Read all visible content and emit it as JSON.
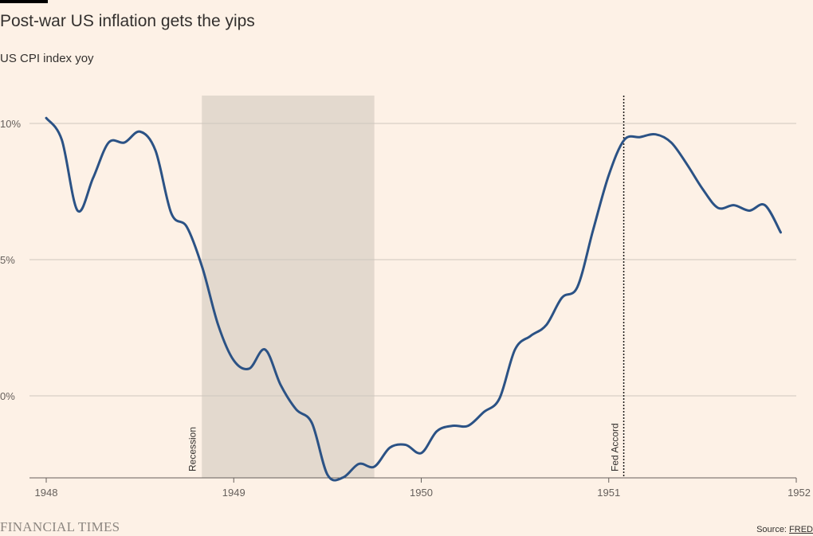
{
  "chart_data": {
    "type": "line",
    "title": "Post-war US inflation gets the yips",
    "subtitle": "US CPI index yoy",
    "xlabel": "",
    "ylabel": "",
    "xlim": [
      1948,
      1952
    ],
    "ylim": [
      -3,
      11
    ],
    "x_ticks": [
      {
        "value": 1948,
        "label": "1948"
      },
      {
        "value": 1949,
        "label": "1949"
      },
      {
        "value": 1950,
        "label": "1950"
      },
      {
        "value": 1951,
        "label": "1951"
      },
      {
        "value": 1952,
        "label": "1952"
      }
    ],
    "y_ticks": [
      {
        "value": 10,
        "label": "10%"
      },
      {
        "value": 5,
        "label": "5%"
      },
      {
        "value": 0,
        "label": "0%"
      }
    ],
    "grid": true,
    "series": [
      {
        "color": "#2b5285",
        "points": [
          [
            1948.0,
            10.2
          ],
          [
            1948.083,
            9.4
          ],
          [
            1948.167,
            6.8
          ],
          [
            1948.25,
            8.0
          ],
          [
            1948.333,
            9.3
          ],
          [
            1948.417,
            9.3
          ],
          [
            1948.5,
            9.7
          ],
          [
            1948.583,
            9.0
          ],
          [
            1948.667,
            6.7
          ],
          [
            1948.75,
            6.2
          ],
          [
            1948.833,
            4.7
          ],
          [
            1948.917,
            2.6
          ],
          [
            1949.0,
            1.3
          ],
          [
            1949.083,
            1.0
          ],
          [
            1949.167,
            1.7
          ],
          [
            1949.25,
            0.4
          ],
          [
            1949.333,
            -0.5
          ],
          [
            1949.417,
            -1.0
          ],
          [
            1949.5,
            -2.9
          ],
          [
            1949.583,
            -3.0
          ],
          [
            1949.667,
            -2.5
          ],
          [
            1949.75,
            -2.6
          ],
          [
            1949.833,
            -1.9
          ],
          [
            1949.917,
            -1.8
          ],
          [
            1950.0,
            -2.1
          ],
          [
            1950.083,
            -1.3
          ],
          [
            1950.167,
            -1.1
          ],
          [
            1950.25,
            -1.1
          ],
          [
            1950.333,
            -0.6
          ],
          [
            1950.417,
            -0.1
          ],
          [
            1950.5,
            1.7
          ],
          [
            1950.583,
            2.2
          ],
          [
            1950.667,
            2.6
          ],
          [
            1950.75,
            3.6
          ],
          [
            1950.833,
            4.0
          ],
          [
            1950.917,
            6.1
          ],
          [
            1951.0,
            8.1
          ],
          [
            1951.083,
            9.4
          ],
          [
            1951.167,
            9.5
          ],
          [
            1951.25,
            9.6
          ],
          [
            1951.333,
            9.3
          ],
          [
            1951.417,
            8.5
          ],
          [
            1951.5,
            7.6
          ],
          [
            1951.583,
            6.9
          ],
          [
            1951.667,
            7.0
          ],
          [
            1951.75,
            6.8
          ],
          [
            1951.833,
            7.0
          ],
          [
            1951.917,
            6.0
          ]
        ]
      }
    ],
    "annotations": [
      {
        "type": "shaded-region",
        "label": "Recession",
        "x_start": 1948.83,
        "x_end": 1949.75,
        "color": "#e3d9ce"
      },
      {
        "type": "vertical-line",
        "label": "Fed Accord",
        "x": 1951.08,
        "style": "dotted"
      }
    ]
  },
  "footer": {
    "brand": "FINANCIAL TIMES",
    "source_prefix": "Source: ",
    "source_link": "FRED"
  }
}
